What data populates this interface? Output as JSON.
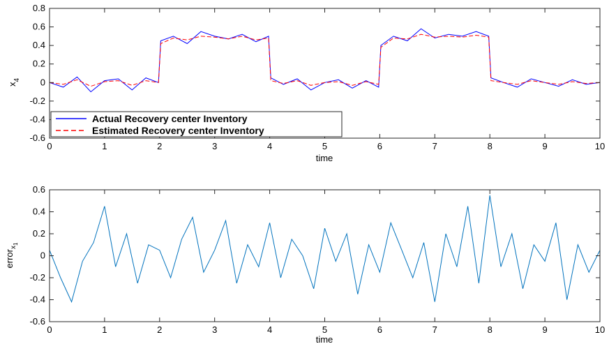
{
  "chart_data": [
    {
      "type": "line",
      "xlabel": "time",
      "ylabel": {
        "base": "x",
        "sub": "4"
      },
      "xlim": [
        0,
        10
      ],
      "ylim": [
        -0.6,
        0.8
      ],
      "xticks": [
        0,
        1,
        2,
        3,
        4,
        5,
        6,
        7,
        8,
        9,
        10
      ],
      "yticks": [
        -0.6,
        -0.4,
        -0.2,
        0,
        0.2,
        0.4,
        0.6,
        0.8
      ],
      "ytick_labels": [
        "-0.6",
        "-0.4",
        "-0.2",
        "0",
        "0.2",
        "0.4",
        "0.6",
        "0.8"
      ],
      "grid": false,
      "legend_position": "bottom-left",
      "x": [
        0,
        0.25,
        0.5,
        0.75,
        1,
        1.25,
        1.5,
        1.75,
        1.98,
        2.02,
        2.25,
        2.5,
        2.75,
        3,
        3.25,
        3.5,
        3.75,
        3.98,
        4.02,
        4.25,
        4.5,
        4.75,
        5,
        5.25,
        5.5,
        5.75,
        5.98,
        6.02,
        6.25,
        6.5,
        6.75,
        7,
        7.25,
        7.5,
        7.75,
        7.98,
        8.02,
        8.25,
        8.5,
        8.75,
        9,
        9.25,
        9.5,
        9.75,
        10
      ],
      "series": [
        {
          "name": "Actual Recovery center Inventory",
          "color": "#0000ff",
          "dash": "solid",
          "values": [
            0.0,
            -0.05,
            0.06,
            -0.1,
            0.02,
            0.04,
            -0.08,
            0.05,
            0.0,
            0.45,
            0.5,
            0.42,
            0.55,
            0.5,
            0.47,
            0.52,
            0.44,
            0.5,
            0.05,
            -0.02,
            0.04,
            -0.08,
            0.0,
            0.03,
            -0.06,
            0.02,
            -0.05,
            0.4,
            0.5,
            0.45,
            0.58,
            0.48,
            0.52,
            0.5,
            0.55,
            0.5,
            0.05,
            0.0,
            -0.05,
            0.04,
            0.0,
            -0.04,
            0.03,
            -0.02,
            0.0
          ]
        },
        {
          "name": "Estimated Recovery center Inventory",
          "color": "#ff0000",
          "dash": "dashed",
          "values": [
            0.0,
            -0.02,
            0.03,
            -0.04,
            0.01,
            0.02,
            -0.03,
            0.02,
            0.0,
            0.42,
            0.48,
            0.46,
            0.5,
            0.49,
            0.47,
            0.5,
            0.46,
            0.48,
            0.02,
            -0.01,
            0.02,
            -0.03,
            0.0,
            0.01,
            -0.03,
            0.01,
            -0.02,
            0.38,
            0.48,
            0.47,
            0.52,
            0.49,
            0.5,
            0.49,
            0.51,
            0.49,
            0.02,
            0.0,
            -0.02,
            0.02,
            0.0,
            -0.02,
            0.01,
            -0.01,
            0.0
          ]
        }
      ]
    },
    {
      "type": "line",
      "xlabel": "time",
      "ylabel": {
        "base": "error",
        "sub": "x",
        "subsub": "1"
      },
      "xlim": [
        0,
        10
      ],
      "ylim": [
        -0.6,
        0.6
      ],
      "xticks": [
        0,
        1,
        2,
        3,
        4,
        5,
        6,
        7,
        8,
        9,
        10
      ],
      "yticks": [
        -0.6,
        -0.4,
        -0.2,
        0,
        0.2,
        0.4,
        0.6
      ],
      "ytick_labels": [
        "-0.6",
        "-0.4",
        "-0.2",
        "0",
        "0.2",
        "0.4",
        "0.6"
      ],
      "grid": false,
      "x": [
        0,
        0.2,
        0.4,
        0.6,
        0.8,
        1.0,
        1.2,
        1.4,
        1.6,
        1.8,
        2.0,
        2.2,
        2.4,
        2.6,
        2.8,
        3.0,
        3.2,
        3.4,
        3.6,
        3.8,
        4.0,
        4.2,
        4.4,
        4.6,
        4.8,
        5.0,
        5.2,
        5.4,
        5.6,
        5.8,
        6.0,
        6.2,
        6.4,
        6.6,
        6.8,
        7.0,
        7.2,
        7.4,
        7.6,
        7.8,
        8.0,
        8.2,
        8.4,
        8.6,
        8.8,
        9.0,
        9.2,
        9.4,
        9.6,
        9.8,
        10.0
      ],
      "series": [
        {
          "color": "#0072bd",
          "values": [
            0.05,
            -0.2,
            -0.42,
            -0.05,
            0.12,
            0.45,
            -0.1,
            0.2,
            -0.25,
            0.1,
            0.05,
            -0.2,
            0.15,
            0.35,
            -0.15,
            0.05,
            0.32,
            -0.25,
            0.1,
            -0.1,
            0.3,
            -0.2,
            0.15,
            0.0,
            -0.3,
            0.25,
            -0.05,
            0.2,
            -0.35,
            0.1,
            -0.15,
            0.3,
            0.05,
            -0.2,
            0.12,
            -0.42,
            0.2,
            -0.1,
            0.45,
            -0.25,
            0.55,
            -0.1,
            0.2,
            -0.3,
            0.1,
            -0.05,
            0.3,
            -0.4,
            0.1,
            -0.15,
            0.05
          ]
        }
      ]
    }
  ]
}
